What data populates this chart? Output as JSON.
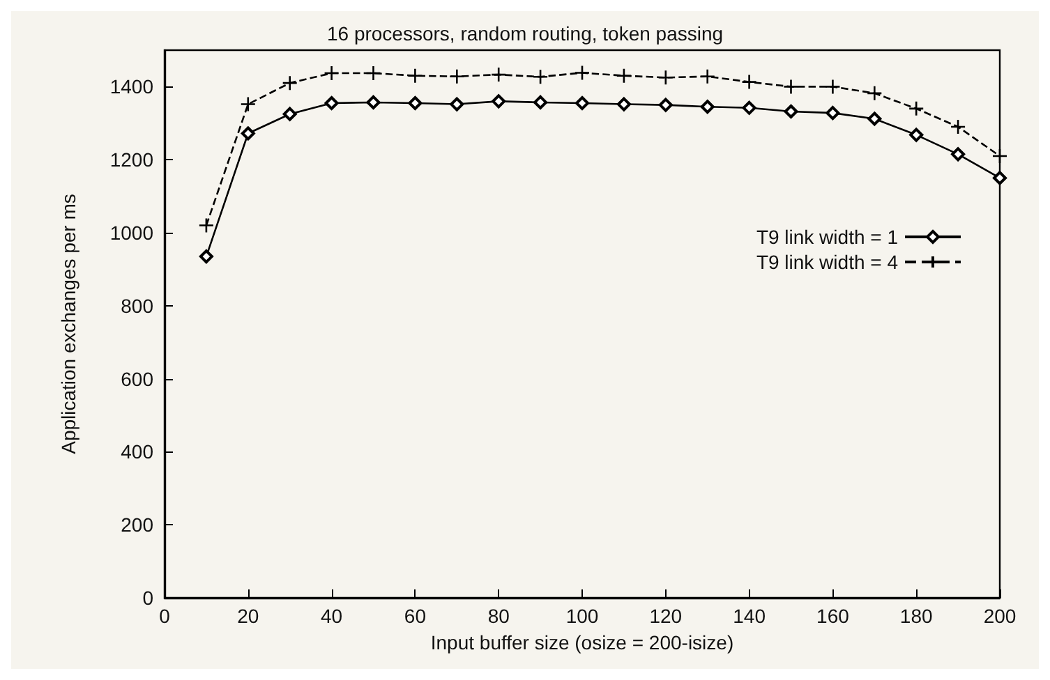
{
  "chart_data": {
    "type": "line",
    "title": "16 processors, random routing, token passing",
    "xlabel": "Input buffer size (osize = 200-isize)",
    "ylabel": "Application exchanges per ms",
    "x": [
      10,
      20,
      30,
      40,
      50,
      60,
      70,
      80,
      90,
      100,
      110,
      120,
      130,
      140,
      150,
      160,
      170,
      180,
      190,
      200
    ],
    "series": [
      {
        "name": "T9 link width = 1",
        "color": "#000000",
        "marker": "diamond",
        "line_style": "solid",
        "values": [
          935,
          1272,
          1325,
          1355,
          1357,
          1355,
          1352,
          1360,
          1357,
          1355,
          1352,
          1350,
          1345,
          1342,
          1332,
          1328,
          1312,
          1268,
          1215,
          1150
        ]
      },
      {
        "name": "T9 link width = 4",
        "color": "#000000",
        "marker": "cross",
        "line_style": "dashed",
        "values": [
          1020,
          1352,
          1410,
          1437,
          1437,
          1430,
          1428,
          1433,
          1427,
          1438,
          1430,
          1425,
          1428,
          1413,
          1400,
          1400,
          1382,
          1340,
          1290,
          1210
        ]
      }
    ],
    "xlim": [
      0,
      200
    ],
    "xticks": [
      0,
      20,
      40,
      60,
      80,
      100,
      120,
      140,
      160,
      180,
      200
    ],
    "ylim": [
      0,
      1500
    ],
    "yticks": [
      0,
      200,
      400,
      600,
      800,
      1000,
      1200,
      1400
    ],
    "grid": false,
    "legend": "right"
  }
}
